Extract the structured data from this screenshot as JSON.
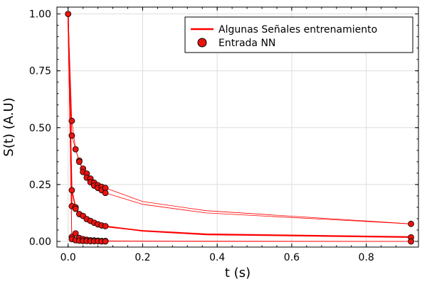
{
  "chart_data": {
    "type": "line",
    "xlabel": "t (s)",
    "ylabel": "S(t) (A.U)",
    "xlim": [
      -0.03,
      0.94
    ],
    "ylim": [
      -0.025,
      1.03
    ],
    "x_ticks": [
      0.0,
      0.2,
      0.4,
      0.6,
      0.8
    ],
    "x_tick_labels": [
      "0.0",
      "0.2",
      "0.4",
      "0.6",
      "0.8"
    ],
    "y_ticks": [
      0.0,
      0.25,
      0.5,
      0.75,
      1.0
    ],
    "y_tick_labels": [
      "0.00",
      "0.25",
      "0.50",
      "0.75",
      "1.00"
    ],
    "grid": true,
    "legend_position": "top-right",
    "legend": [
      {
        "label": "Algunas Señales entrenamiento",
        "kind": "line"
      },
      {
        "label": "Entrada NN",
        "kind": "marker"
      }
    ],
    "colors": {
      "line": "#ff0000",
      "marker_fill": "#e8140f",
      "marker_edge": "#000000",
      "grid": "#dddddd"
    },
    "series": [
      {
        "x": [
          0.0,
          0.01,
          0.02,
          0.03,
          0.04,
          0.05,
          0.06,
          0.07,
          0.08,
          0.09,
          0.1,
          0.2,
          0.37,
          0.92
        ],
        "values": [
          1.0,
          0.53,
          0.405,
          0.355,
          0.305,
          0.28,
          0.26,
          0.245,
          0.235,
          0.225,
          0.213,
          0.163,
          0.125,
          0.077
        ]
      },
      {
        "x": [
          0.0,
          0.01,
          0.02,
          0.03,
          0.04,
          0.05,
          0.06,
          0.07,
          0.08,
          0.09,
          0.1,
          0.2,
          0.37,
          0.92
        ],
        "values": [
          1.0,
          0.465,
          0.405,
          0.35,
          0.32,
          0.298,
          0.276,
          0.258,
          0.247,
          0.24,
          0.235,
          0.175,
          0.135,
          0.077
        ]
      },
      {
        "x": [
          0.0,
          0.01,
          0.02,
          0.03,
          0.04,
          0.05,
          0.06,
          0.07,
          0.08,
          0.09,
          0.1,
          0.2,
          0.37,
          0.92
        ],
        "values": [
          1.0,
          0.155,
          0.143,
          0.125,
          0.112,
          0.098,
          0.09,
          0.082,
          0.075,
          0.07,
          0.067,
          0.046,
          0.03,
          0.018
        ]
      },
      {
        "x": [
          0.0,
          0.01,
          0.02,
          0.03,
          0.04,
          0.05,
          0.06,
          0.07,
          0.08,
          0.09,
          0.1,
          0.2,
          0.37,
          0.92
        ],
        "values": [
          1.0,
          0.225,
          0.15,
          0.12,
          0.105,
          0.095,
          0.088,
          0.08,
          0.075,
          0.07,
          0.065,
          0.047,
          0.032,
          0.02
        ]
      },
      {
        "x": [
          0.0,
          0.01,
          0.02,
          0.03,
          0.04,
          0.05,
          0.06,
          0.07,
          0.08,
          0.09,
          0.1,
          0.2,
          0.37,
          0.92
        ],
        "values": [
          1.0,
          0.02,
          0.03,
          0.015,
          0.01,
          0.007,
          0.005,
          0.004,
          0.003,
          0.002,
          0.002,
          0.001,
          0.001,
          0.0
        ]
      },
      {
        "x": [
          0.0,
          0.01,
          0.02,
          0.03,
          0.04,
          0.05,
          0.06,
          0.07,
          0.08,
          0.09,
          0.1,
          0.2,
          0.37,
          0.92
        ],
        "values": [
          1.0,
          0.01,
          0.035,
          0.012,
          0.008,
          0.005,
          0.004,
          0.003,
          0.002,
          0.002,
          0.001,
          0.001,
          0.0,
          0.0
        ]
      }
    ],
    "markers": [
      {
        "x": 0.0,
        "y": 1.0
      },
      {
        "x": 0.01,
        "y": 0.53
      },
      {
        "x": 0.01,
        "y": 0.465
      },
      {
        "x": 0.01,
        "y": 0.225
      },
      {
        "x": 0.01,
        "y": 0.155
      },
      {
        "x": 0.01,
        "y": 0.02
      },
      {
        "x": 0.01,
        "y": 0.01
      },
      {
        "x": 0.02,
        "y": 0.405
      },
      {
        "x": 0.02,
        "y": 0.15
      },
      {
        "x": 0.02,
        "y": 0.143
      },
      {
        "x": 0.02,
        "y": 0.035
      },
      {
        "x": 0.02,
        "y": 0.005
      },
      {
        "x": 0.03,
        "y": 0.355
      },
      {
        "x": 0.03,
        "y": 0.35
      },
      {
        "x": 0.03,
        "y": 0.12
      },
      {
        "x": 0.03,
        "y": 0.015
      },
      {
        "x": 0.03,
        "y": 0.003
      },
      {
        "x": 0.04,
        "y": 0.32
      },
      {
        "x": 0.04,
        "y": 0.305
      },
      {
        "x": 0.04,
        "y": 0.112
      },
      {
        "x": 0.04,
        "y": 0.01
      },
      {
        "x": 0.04,
        "y": 0.002
      },
      {
        "x": 0.05,
        "y": 0.298
      },
      {
        "x": 0.05,
        "y": 0.28
      },
      {
        "x": 0.05,
        "y": 0.098
      },
      {
        "x": 0.05,
        "y": 0.007
      },
      {
        "x": 0.05,
        "y": 0.002
      },
      {
        "x": 0.06,
        "y": 0.276
      },
      {
        "x": 0.06,
        "y": 0.26
      },
      {
        "x": 0.06,
        "y": 0.09
      },
      {
        "x": 0.06,
        "y": 0.005
      },
      {
        "x": 0.06,
        "y": 0.001
      },
      {
        "x": 0.07,
        "y": 0.258
      },
      {
        "x": 0.07,
        "y": 0.245
      },
      {
        "x": 0.07,
        "y": 0.082
      },
      {
        "x": 0.07,
        "y": 0.004
      },
      {
        "x": 0.07,
        "y": 0.001
      },
      {
        "x": 0.08,
        "y": 0.247
      },
      {
        "x": 0.08,
        "y": 0.235
      },
      {
        "x": 0.08,
        "y": 0.075
      },
      {
        "x": 0.08,
        "y": 0.003
      },
      {
        "x": 0.08,
        "y": 0.001
      },
      {
        "x": 0.09,
        "y": 0.24
      },
      {
        "x": 0.09,
        "y": 0.225
      },
      {
        "x": 0.09,
        "y": 0.07
      },
      {
        "x": 0.09,
        "y": 0.002
      },
      {
        "x": 0.09,
        "y": 0.0
      },
      {
        "x": 0.1,
        "y": 0.235
      },
      {
        "x": 0.1,
        "y": 0.213
      },
      {
        "x": 0.1,
        "y": 0.067
      },
      {
        "x": 0.1,
        "y": 0.002
      },
      {
        "x": 0.1,
        "y": 0.0
      },
      {
        "x": 0.92,
        "y": 0.077
      },
      {
        "x": 0.92,
        "y": 0.018
      },
      {
        "x": 0.92,
        "y": 0.0
      }
    ]
  }
}
